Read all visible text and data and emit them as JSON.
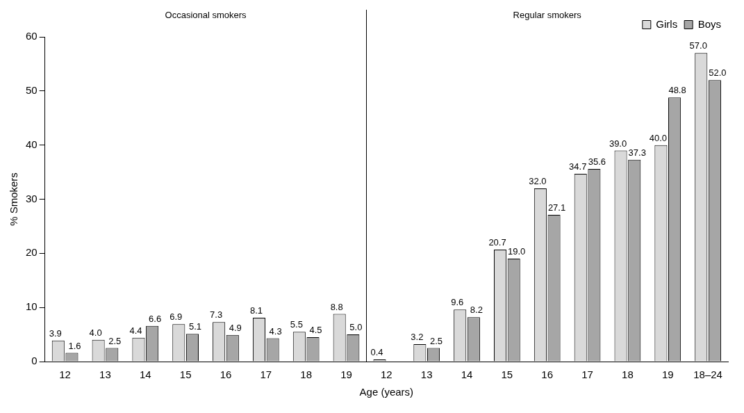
{
  "chart_data": {
    "type": "bar",
    "xlabel": "Age (years)",
    "ylabel": "% Smokers",
    "annotations": [
      "Occasional smokers",
      "Regular smokers"
    ],
    "categories": [
      "12",
      "13",
      "14",
      "15",
      "16",
      "17",
      "18",
      "19",
      "12",
      "13",
      "14",
      "15",
      "16",
      "17",
      "18",
      "19",
      "18–24"
    ],
    "series": [
      {
        "name": "Girls",
        "color": "#d9d9d9",
        "values": [
          3.9,
          4.0,
          4.4,
          6.9,
          7.3,
          8.1,
          5.5,
          8.8,
          0.4,
          3.2,
          9.6,
          20.7,
          32.0,
          34.7,
          39.0,
          40.0,
          57.0
        ],
        "value_labels": [
          "3.9",
          "4.0",
          "4.4",
          "6.9",
          "7.3",
          "8.1",
          "5.5",
          "8.8",
          "0.4",
          "3.2",
          "9.6",
          "20.7",
          "32.0",
          "34.7",
          "39.0",
          "40.0",
          "57.0"
        ]
      },
      {
        "name": "Boys",
        "color": "#a6a6a6",
        "values": [
          1.6,
          2.5,
          6.6,
          5.1,
          4.9,
          4.3,
          4.5,
          5.0,
          null,
          2.5,
          8.2,
          19.0,
          27.1,
          35.6,
          37.3,
          48.8,
          52.0
        ],
        "value_labels": [
          "1.6",
          "2.5",
          "6.6",
          "5.1",
          "4.9",
          "4.3",
          "4.5",
          "5.0",
          null,
          "2.5",
          "8.2",
          "19.0",
          "27.1",
          "35.6",
          "37.3",
          "48.8",
          "52.0"
        ]
      }
    ],
    "ylim": [
      0,
      60
    ],
    "yticks": [
      0,
      10,
      20,
      30,
      40,
      50,
      60
    ],
    "grid": false,
    "legend": "top right"
  }
}
